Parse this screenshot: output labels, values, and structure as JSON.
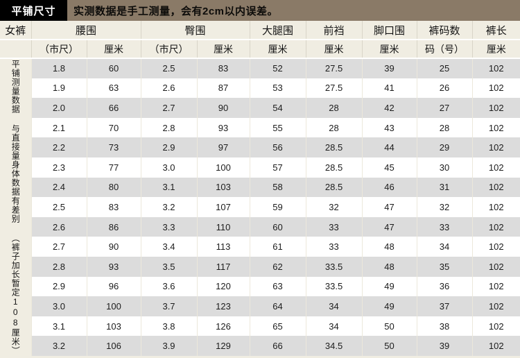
{
  "banner": {
    "title": "平铺尺寸",
    "note": "实测数据是手工测量，会有2cm以内误差。"
  },
  "colors": {
    "banner_title_bg": "#000000",
    "banner_bar_bg": "#8a7a67",
    "page_bg": "#f0ede2",
    "stripe_gray": "#dcdcdc",
    "stripe_white": "#ffffff"
  },
  "table": {
    "corner_label": "女裤",
    "group_headers": [
      {
        "label": "腰围",
        "span": 2
      },
      {
        "label": "臀围",
        "span": 2
      },
      {
        "label": "大腿围",
        "span": 1
      },
      {
        "label": "前裆",
        "span": 1
      },
      {
        "label": "脚口围",
        "span": 1
      },
      {
        "label": "裤码数",
        "span": 1
      },
      {
        "label": "裤长",
        "span": 1
      }
    ],
    "unit_headers": [
      "（市尺）",
      "厘米",
      "（市尺）",
      "厘米",
      "厘米",
      "厘米",
      "厘米",
      "码（号）",
      "厘米"
    ],
    "side_note": "平铺测量数据 与直接量身体数据有差别 （裤子加长暂定108厘米）",
    "rows": [
      [
        "1.8",
        "60",
        "2.5",
        "83",
        "52",
        "27.5",
        "39",
        "25",
        "102"
      ],
      [
        "1.9",
        "63",
        "2.6",
        "87",
        "53",
        "27.5",
        "41",
        "26",
        "102"
      ],
      [
        "2.0",
        "66",
        "2.7",
        "90",
        "54",
        "28",
        "42",
        "27",
        "102"
      ],
      [
        "2.1",
        "70",
        "2.8",
        "93",
        "55",
        "28",
        "43",
        "28",
        "102"
      ],
      [
        "2.2",
        "73",
        "2.9",
        "97",
        "56",
        "28.5",
        "44",
        "29",
        "102"
      ],
      [
        "2.3",
        "77",
        "3.0",
        "100",
        "57",
        "28.5",
        "45",
        "30",
        "102"
      ],
      [
        "2.4",
        "80",
        "3.1",
        "103",
        "58",
        "28.5",
        "46",
        "31",
        "102"
      ],
      [
        "2.5",
        "83",
        "3.2",
        "107",
        "59",
        "32",
        "47",
        "32",
        "102"
      ],
      [
        "2.6",
        "86",
        "3.3",
        "110",
        "60",
        "33",
        "47",
        "33",
        "102"
      ],
      [
        "2.7",
        "90",
        "3.4",
        "113",
        "61",
        "33",
        "48",
        "34",
        "102"
      ],
      [
        "2.8",
        "93",
        "3.5",
        "117",
        "62",
        "33.5",
        "48",
        "35",
        "102"
      ],
      [
        "2.9",
        "96",
        "3.6",
        "120",
        "63",
        "33.5",
        "49",
        "36",
        "102"
      ],
      [
        "3.0",
        "100",
        "3.7",
        "123",
        "64",
        "34",
        "49",
        "37",
        "102"
      ],
      [
        "3.1",
        "103",
        "3.8",
        "126",
        "65",
        "34",
        "50",
        "38",
        "102"
      ],
      [
        "3.2",
        "106",
        "3.9",
        "129",
        "66",
        "34.5",
        "50",
        "39",
        "102"
      ]
    ]
  }
}
